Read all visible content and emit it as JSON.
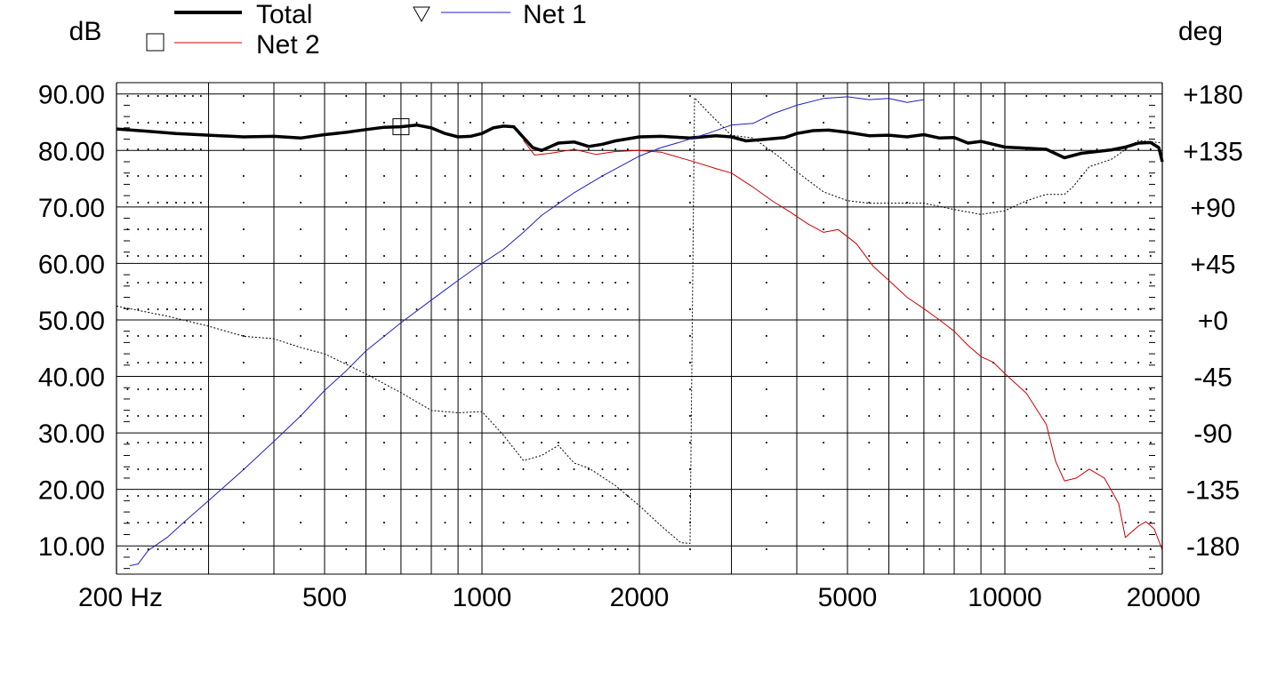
{
  "chart_data": {
    "type": "line",
    "x_scale": "log",
    "xlim": [
      200,
      20000
    ],
    "x_ticks": [
      200,
      500,
      1000,
      2000,
      5000,
      10000,
      20000
    ],
    "x_tick_labels": [
      "200 Hz",
      "500",
      "1000",
      "2000",
      "5000",
      "10000",
      "20000"
    ],
    "x_grid_minor": [
      300,
      400,
      600,
      700,
      800,
      900,
      3000,
      4000,
      6000,
      7000,
      8000,
      9000
    ],
    "ylabel_left": "dB",
    "ylim": [
      5,
      92
    ],
    "y_ticks": [
      10,
      20,
      30,
      40,
      50,
      60,
      70,
      80,
      90
    ],
    "y_tick_labels": [
      "10.00",
      "20.00",
      "30.00",
      "40.00",
      "50.00",
      "60.00",
      "70.00",
      "80.00",
      "90.00"
    ],
    "ylabel_right": "deg",
    "y2_ticks": [
      -180,
      -135,
      -90,
      -45,
      0,
      45,
      90,
      135,
      180
    ],
    "y2_tick_labels": [
      "-180",
      "-135",
      "-90",
      "-45",
      "+0",
      "+45",
      "+90",
      "+135",
      "+180"
    ],
    "grid": true,
    "legend": "top-left",
    "series": [
      {
        "name": "Total",
        "color": "#000000",
        "axis": "left",
        "width": 3.5,
        "marker": "square",
        "marker_at": 700,
        "points": [
          [
            200,
            83.8
          ],
          [
            230,
            83.4
          ],
          [
            260,
            83.0
          ],
          [
            300,
            82.7
          ],
          [
            350,
            82.4
          ],
          [
            400,
            82.5
          ],
          [
            450,
            82.2
          ],
          [
            500,
            82.8
          ],
          [
            550,
            83.2
          ],
          [
            600,
            83.7
          ],
          [
            650,
            84.1
          ],
          [
            700,
            84.2
          ],
          [
            750,
            84.5
          ],
          [
            800,
            84.0
          ],
          [
            850,
            83.0
          ],
          [
            900,
            82.4
          ],
          [
            950,
            82.5
          ],
          [
            1000,
            83.0
          ],
          [
            1050,
            84.0
          ],
          [
            1100,
            84.3
          ],
          [
            1150,
            84.2
          ],
          [
            1200,
            82.3
          ],
          [
            1250,
            80.5
          ],
          [
            1300,
            80.0
          ],
          [
            1400,
            81.3
          ],
          [
            1500,
            81.5
          ],
          [
            1600,
            80.7
          ],
          [
            1700,
            81.1
          ],
          [
            1800,
            81.7
          ],
          [
            2000,
            82.4
          ],
          [
            2200,
            82.5
          ],
          [
            2500,
            82.2
          ],
          [
            2800,
            82.6
          ],
          [
            3000,
            82.4
          ],
          [
            3200,
            81.7
          ],
          [
            3500,
            82.0
          ],
          [
            3800,
            82.3
          ],
          [
            4000,
            83.0
          ],
          [
            4300,
            83.5
          ],
          [
            4600,
            83.6
          ],
          [
            5000,
            83.2
          ],
          [
            5500,
            82.6
          ],
          [
            6000,
            82.7
          ],
          [
            6500,
            82.4
          ],
          [
            7000,
            82.8
          ],
          [
            7500,
            82.2
          ],
          [
            8000,
            82.3
          ],
          [
            8500,
            81.3
          ],
          [
            9000,
            81.6
          ],
          [
            10000,
            80.6
          ],
          [
            11000,
            80.4
          ],
          [
            12000,
            80.2
          ],
          [
            13000,
            78.7
          ],
          [
            14000,
            79.5
          ],
          [
            15000,
            79.8
          ],
          [
            16000,
            80.1
          ],
          [
            17000,
            80.6
          ],
          [
            18000,
            81.3
          ],
          [
            19000,
            81.4
          ],
          [
            19700,
            80.5
          ],
          [
            20000,
            78.0
          ]
        ]
      },
      {
        "name": "Net 2",
        "color": "#cc0000",
        "axis": "left",
        "width": 1,
        "marker": "square",
        "points": [
          [
            1200,
            81.8
          ],
          [
            1260,
            79.2
          ],
          [
            1350,
            79.5
          ],
          [
            1500,
            80.2
          ],
          [
            1650,
            79.3
          ],
          [
            1800,
            79.8
          ],
          [
            2000,
            80.0
          ],
          [
            2200,
            79.7
          ],
          [
            2500,
            78.2
          ],
          [
            2800,
            76.8
          ],
          [
            3000,
            76.0
          ],
          [
            3300,
            73.5
          ],
          [
            3600,
            71.0
          ],
          [
            3900,
            69.0
          ],
          [
            4200,
            67.0
          ],
          [
            4500,
            65.5
          ],
          [
            4800,
            66.0
          ],
          [
            5200,
            63.5
          ],
          [
            5600,
            59.5
          ],
          [
            6000,
            57.0
          ],
          [
            6500,
            54.0
          ],
          [
            7000,
            52.0
          ],
          [
            7500,
            50.0
          ],
          [
            8000,
            48.0
          ],
          [
            8500,
            45.5
          ],
          [
            9000,
            43.5
          ],
          [
            9500,
            42.5
          ],
          [
            10000,
            40.5
          ],
          [
            11000,
            37.0
          ],
          [
            12000,
            31.5
          ],
          [
            12500,
            25.0
          ],
          [
            13000,
            21.5
          ],
          [
            13700,
            22.0
          ],
          [
            14500,
            23.6
          ],
          [
            15500,
            22.0
          ],
          [
            16500,
            17.5
          ],
          [
            17000,
            11.5
          ],
          [
            18000,
            13.5
          ],
          [
            18600,
            14.3
          ],
          [
            19300,
            13.0
          ],
          [
            20000,
            9.3
          ]
        ]
      },
      {
        "name": "Net 1",
        "color": "#1f1fbf",
        "axis": "left",
        "width": 1,
        "marker": "triangle-down",
        "points": [
          [
            212,
            6.5
          ],
          [
            220,
            6.8
          ],
          [
            230,
            9.2
          ],
          [
            250,
            11.5
          ],
          [
            270,
            14.3
          ],
          [
            300,
            18.0
          ],
          [
            350,
            23.5
          ],
          [
            400,
            28.5
          ],
          [
            450,
            33.0
          ],
          [
            500,
            37.5
          ],
          [
            550,
            41.0
          ],
          [
            600,
            44.5
          ],
          [
            700,
            49.5
          ],
          [
            800,
            53.5
          ],
          [
            900,
            57.0
          ],
          [
            1000,
            60.0
          ],
          [
            1100,
            62.5
          ],
          [
            1200,
            65.5
          ],
          [
            1300,
            68.5
          ],
          [
            1500,
            72.5
          ],
          [
            1700,
            75.5
          ],
          [
            2000,
            79.0
          ],
          [
            2200,
            80.5
          ],
          [
            2400,
            81.5
          ],
          [
            2700,
            83.0
          ],
          [
            3000,
            84.5
          ],
          [
            3300,
            84.8
          ],
          [
            3600,
            86.5
          ],
          [
            4000,
            88.0
          ],
          [
            4500,
            89.2
          ],
          [
            5000,
            89.5
          ],
          [
            5500,
            89.0
          ],
          [
            6000,
            89.2
          ],
          [
            6500,
            88.5
          ],
          [
            7000,
            89.0
          ]
        ]
      },
      {
        "color": "#000000",
        "axis": "right",
        "dashed": true,
        "width": 1,
        "points": [
          [
            200,
            11.0
          ],
          [
            250,
            3.0
          ],
          [
            300,
            -5.0
          ],
          [
            350,
            -13.0
          ],
          [
            400,
            -15.0
          ],
          [
            450,
            -22.0
          ],
          [
            500,
            -27.0
          ],
          [
            600,
            -43.0
          ],
          [
            700,
            -58.0
          ],
          [
            800,
            -72.0
          ],
          [
            900,
            -74.0
          ],
          [
            1000,
            -73.0
          ],
          [
            1100,
            -92.0
          ],
          [
            1200,
            -112.0
          ],
          [
            1300,
            -108.0
          ],
          [
            1400,
            -100.0
          ],
          [
            1500,
            -114.0
          ],
          [
            1600,
            -118.0
          ],
          [
            1800,
            -132.0
          ],
          [
            2000,
            -148.0
          ],
          [
            2200,
            -164.0
          ],
          [
            2400,
            -177.5
          ],
          [
            2500,
            -178.0
          ],
          [
            2550,
            177.0
          ],
          [
            2700,
            166.0
          ],
          [
            3000,
            147.0
          ],
          [
            3300,
            145.0
          ],
          [
            3700,
            130.0
          ],
          [
            4000,
            118.0
          ],
          [
            4500,
            102.0
          ],
          [
            5000,
            95.0
          ],
          [
            5500,
            93.0
          ],
          [
            6000,
            93.0
          ],
          [
            7000,
            93.0
          ],
          [
            8000,
            88.0
          ],
          [
            9000,
            84.0
          ],
          [
            10000,
            87.0
          ],
          [
            11000,
            95.0
          ],
          [
            12000,
            100.0
          ],
          [
            13000,
            100.0
          ],
          [
            13500,
            106.0
          ],
          [
            14500,
            122.0
          ],
          [
            16000,
            128.0
          ],
          [
            18000,
            143.0
          ],
          [
            20000,
            141.0
          ]
        ]
      }
    ]
  }
}
